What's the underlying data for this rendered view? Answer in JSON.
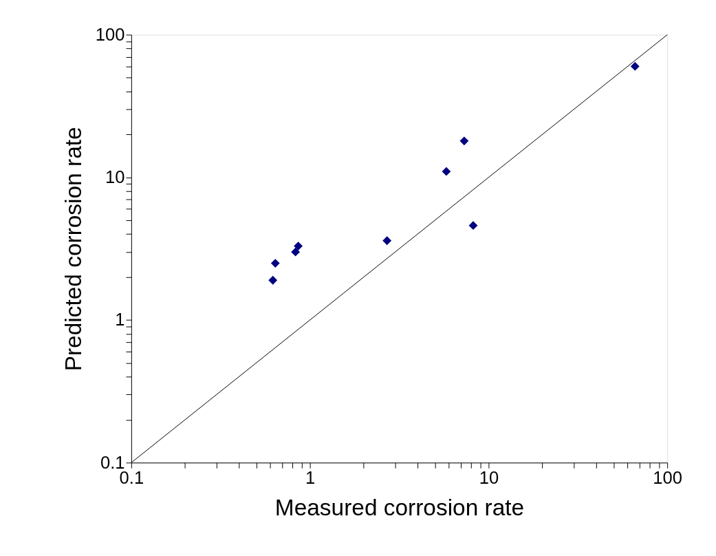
{
  "chart_data": {
    "type": "scatter",
    "xlabel": "Measured corrosion rate",
    "ylabel": "Predicted corrosion rate",
    "log": "xy",
    "grid": false,
    "marker": "diamond",
    "xlim": [
      0.1,
      100
    ],
    "ylim": [
      0.1,
      100
    ],
    "xticks": [
      0.1,
      {
        "value": 0.2,
        "label": null
      },
      {
        "value": 0.3,
        "label": null
      },
      {
        "value": 0.4,
        "label": null
      },
      {
        "value": 0.5,
        "label": null
      },
      {
        "value": 0.6,
        "label": null
      },
      {
        "value": 0.7,
        "label": null
      },
      {
        "value": 0.8,
        "label": null
      },
      {
        "value": 0.9,
        "label": null
      },
      1,
      {
        "value": 2,
        "label": null
      },
      {
        "value": 3,
        "label": null
      },
      {
        "value": 4,
        "label": null
      },
      {
        "value": 5,
        "label": null
      },
      {
        "value": 6,
        "label": null
      },
      {
        "value": 7,
        "label": null
      },
      {
        "value": 8,
        "label": null
      },
      {
        "value": 9,
        "label": null
      },
      10,
      {
        "value": 20,
        "label": null
      },
      {
        "value": 30,
        "label": null
      },
      {
        "value": 40,
        "label": null
      },
      {
        "value": 50,
        "label": null
      },
      {
        "value": 60,
        "label": null
      },
      {
        "value": 70,
        "label": null
      },
      {
        "value": 80,
        "label": null
      },
      {
        "value": 90,
        "label": null
      },
      100
    ],
    "yticks": [
      0.1,
      {
        "value": 0.2,
        "label": null
      },
      {
        "value": 0.3,
        "label": null
      },
      {
        "value": 0.4,
        "label": null
      },
      {
        "value": 0.5,
        "label": null
      },
      {
        "value": 0.6,
        "label": null
      },
      {
        "value": 0.7,
        "label": null
      },
      {
        "value": 0.8,
        "label": null
      },
      {
        "value": 0.9,
        "label": null
      },
      1,
      {
        "value": 2,
        "label": null
      },
      {
        "value": 3,
        "label": null
      },
      {
        "value": 4,
        "label": null
      },
      {
        "value": 5,
        "label": null
      },
      {
        "value": 6,
        "label": null
      },
      {
        "value": 7,
        "label": null
      },
      {
        "value": 8,
        "label": null
      },
      {
        "value": 9,
        "label": null
      },
      10,
      {
        "value": 20,
        "label": null
      },
      {
        "value": 30,
        "label": null
      },
      {
        "value": 40,
        "label": null
      },
      {
        "value": 50,
        "label": null
      },
      {
        "value": 60,
        "label": null
      },
      {
        "value": 70,
        "label": null
      },
      {
        "value": 80,
        "label": null
      },
      {
        "value": 90,
        "label": null
      },
      100
    ],
    "series": [
      {
        "color": "#000080",
        "x": [
          0.62,
          0.64,
          0.83,
          0.86,
          2.7,
          5.8,
          7.3,
          8.2,
          66
        ],
        "values": [
          1.9,
          2.5,
          3.0,
          3.3,
          3.6,
          11,
          18,
          4.6,
          60
        ]
      },
      {
        "type": "line",
        "color": "#000000",
        "marker": "none",
        "line_style": "solid",
        "x": [
          0.1,
          100
        ],
        "values": [
          0.1,
          100
        ]
      }
    ]
  }
}
